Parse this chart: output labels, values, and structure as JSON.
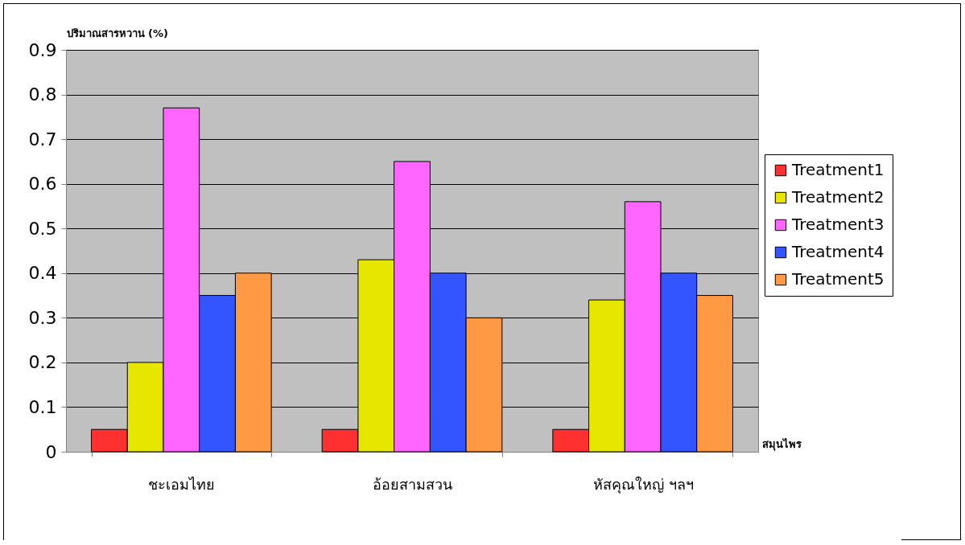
{
  "chart_data": {
    "type": "bar",
    "ylabel": "ปริมาณสารหวาน (%)",
    "xlabel": "สมุนไพร",
    "categories": [
      "ชะเอมไทย",
      "อ้อยสามสวน",
      "หัสคุณใหญ่ ฯลฯ"
    ],
    "series": [
      {
        "name": "Treatment1",
        "color": "#ff3030",
        "values": [
          0.05,
          0.05,
          0.05
        ]
      },
      {
        "name": "Treatment2",
        "color": "#e6e600",
        "values": [
          0.2,
          0.43,
          0.34
        ]
      },
      {
        "name": "Treatment3",
        "color": "#ff66ff",
        "values": [
          0.77,
          0.65,
          0.56
        ]
      },
      {
        "name": "Treatment4",
        "color": "#3355ff",
        "values": [
          0.35,
          0.4,
          0.4
        ]
      },
      {
        "name": "Treatment5",
        "color": "#ff9944",
        "values": [
          0.4,
          0.3,
          0.35
        ]
      }
    ],
    "ylim": [
      0,
      0.9
    ],
    "yticks": [
      0,
      0.1,
      0.2,
      0.3,
      0.4,
      0.5,
      0.6,
      0.7,
      0.8,
      0.9
    ],
    "grid": "y",
    "legend": "right"
  }
}
